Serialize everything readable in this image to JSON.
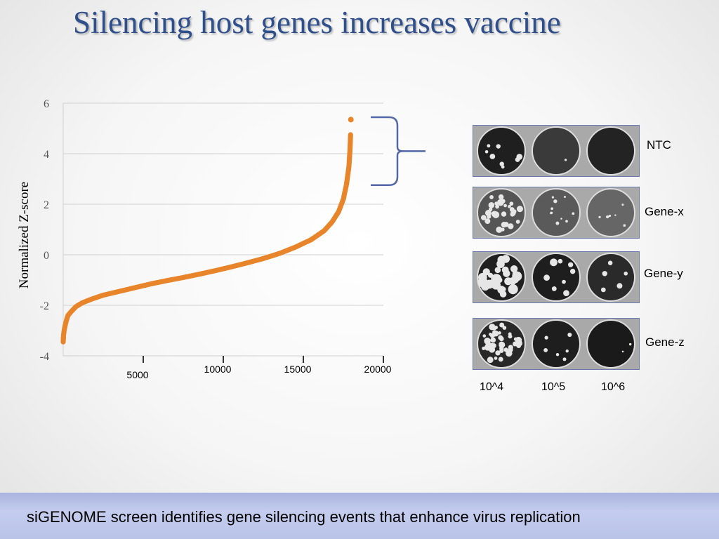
{
  "slide": {
    "title": "Silencing host genes increases vaccine",
    "footer": "siGENOME screen identifies gene silencing events that enhance virus replication"
  },
  "chart_data": {
    "type": "scatter",
    "title": "",
    "xlabel": "",
    "ylabel": "Normalized Z-score",
    "xlim": [
      0,
      20000
    ],
    "ylim": [
      -4,
      6
    ],
    "x_ticks": [
      "5000",
      "10000",
      "15000",
      "20000"
    ],
    "x_tick_values": [
      5000,
      10000,
      15000,
      20000
    ],
    "y_ticks": [
      "6",
      "4",
      "2",
      "0",
      "-2",
      "-4"
    ],
    "y_tick_values": [
      6,
      4,
      2,
      0,
      -2,
      -4
    ],
    "grid": true,
    "color": "#e8852a",
    "series": [
      {
        "points": [
          [
            1,
            -3.45
          ],
          [
            20,
            -3.2
          ],
          [
            60,
            -3.0
          ],
          [
            120,
            -2.8
          ],
          [
            200,
            -2.6
          ],
          [
            300,
            -2.4
          ],
          [
            500,
            -2.25
          ],
          [
            800,
            -2.05
          ],
          [
            1200,
            -1.9
          ],
          [
            1800,
            -1.75
          ],
          [
            2500,
            -1.6
          ],
          [
            3500,
            -1.45
          ],
          [
            4500,
            -1.3
          ],
          [
            5500,
            -1.15
          ],
          [
            6500,
            -1.02
          ],
          [
            7500,
            -0.9
          ],
          [
            8500,
            -0.77
          ],
          [
            9500,
            -0.63
          ],
          [
            10500,
            -0.48
          ],
          [
            11500,
            -0.32
          ],
          [
            12500,
            -0.15
          ],
          [
            13500,
            0.05
          ],
          [
            14500,
            0.3
          ],
          [
            15500,
            0.6
          ],
          [
            16300,
            0.95
          ],
          [
            16800,
            1.3
          ],
          [
            17200,
            1.7
          ],
          [
            17500,
            2.2
          ],
          [
            17700,
            2.8
          ],
          [
            17850,
            3.5
          ],
          [
            17920,
            4.2
          ],
          [
            17950,
            4.75
          ]
        ]
      }
    ],
    "outlier": [
      17970,
      5.35
    ],
    "bracket_range": [
      2.7,
      5.5
    ]
  },
  "plates": {
    "rows": [
      "NTC",
      "Gene-x",
      "Gene-y",
      "Gene-z"
    ],
    "dilutions": [
      "10^4",
      "10^5",
      "10^6"
    ]
  }
}
